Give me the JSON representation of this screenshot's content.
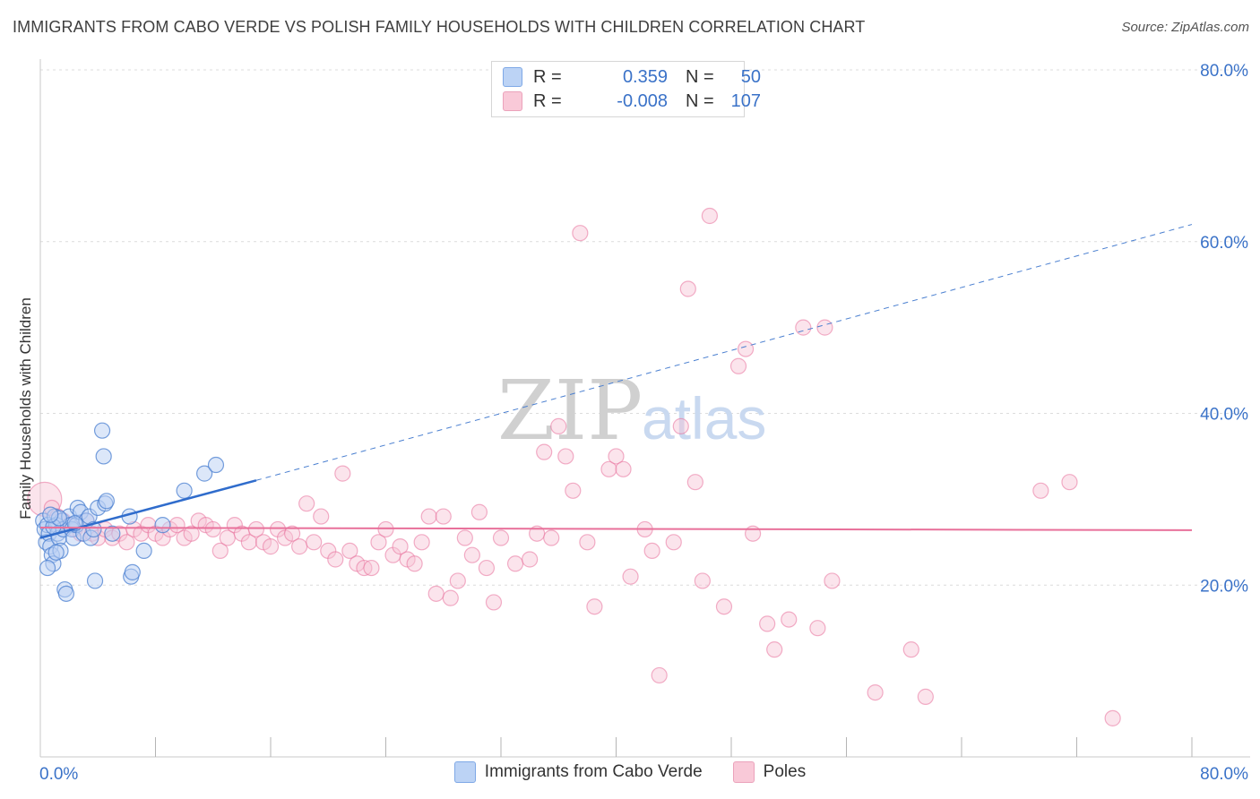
{
  "title": "IMMIGRANTS FROM CABO VERDE VS POLISH FAMILY HOUSEHOLDS WITH CHILDREN CORRELATION CHART",
  "source": "Source: ZipAtlas.com",
  "watermark": {
    "zip": "ZIP",
    "atlas": "atlas"
  },
  "stats": {
    "r_label": "R =",
    "n_label": "N =",
    "blue": {
      "r": "0.359",
      "n": "50",
      "color": "#4a7fd0"
    },
    "pink": {
      "r": "-0.008",
      "n": "107",
      "color": "#e8709a"
    }
  },
  "legend": {
    "blue_label": "Immigrants from Cabo Verde",
    "pink_label": "Poles"
  },
  "chart_data": {
    "type": "scatter",
    "title": "IMMIGRANTS FROM CABO VERDE VS POLISH FAMILY HOUSEHOLDS WITH CHILDREN CORRELATION CHART",
    "xlabel": "",
    "ylabel": "Family Households with Children",
    "xlim": [
      0,
      80
    ],
    "ylim": [
      0,
      80
    ],
    "x_tick_labels": [
      "0.0%",
      "80.0%"
    ],
    "y_tick_values": [
      20,
      40,
      60,
      80
    ],
    "y_tick_labels": [
      "20.0%",
      "40.0%",
      "60.0%",
      "80.0%"
    ],
    "grid": true,
    "series": [
      {
        "name": "Immigrants from Cabo Verde",
        "color": "#4a7fd0",
        "fill": "#b9d0f3",
        "points": [
          [
            0.2,
            27.5
          ],
          [
            0.3,
            26.5
          ],
          [
            0.4,
            25.0
          ],
          [
            0.5,
            27.0
          ],
          [
            0.6,
            26.0
          ],
          [
            0.7,
            24.5
          ],
          [
            0.8,
            23.5
          ],
          [
            0.9,
            22.5
          ],
          [
            1.0,
            28.0
          ],
          [
            1.1,
            27.0
          ],
          [
            1.2,
            26.0
          ],
          [
            1.3,
            25.5
          ],
          [
            1.4,
            24.0
          ],
          [
            1.5,
            27.5
          ],
          [
            1.6,
            26.5
          ],
          [
            1.7,
            19.5
          ],
          [
            1.8,
            19.0
          ],
          [
            2.0,
            28.0
          ],
          [
            2.1,
            27.0
          ],
          [
            2.2,
            26.5
          ],
          [
            2.3,
            25.5
          ],
          [
            2.5,
            27.0
          ],
          [
            2.6,
            29.0
          ],
          [
            2.8,
            28.5
          ],
          [
            3.0,
            26.0
          ],
          [
            3.2,
            27.5
          ],
          [
            3.4,
            28.0
          ],
          [
            3.5,
            25.5
          ],
          [
            3.7,
            26.5
          ],
          [
            3.8,
            20.5
          ],
          [
            4.0,
            29.0
          ],
          [
            4.3,
            38.0
          ],
          [
            4.4,
            35.0
          ],
          [
            4.5,
            29.5
          ],
          [
            4.6,
            29.8
          ],
          [
            5.0,
            26.0
          ],
          [
            6.2,
            28.0
          ],
          [
            6.3,
            21.0
          ],
          [
            6.4,
            21.5
          ],
          [
            7.2,
            24.0
          ],
          [
            8.5,
            27.0
          ],
          [
            10.0,
            31.0
          ],
          [
            11.4,
            33.0
          ],
          [
            12.2,
            34.0
          ],
          [
            0.5,
            22.0
          ],
          [
            0.9,
            26.8
          ],
          [
            1.3,
            27.8
          ],
          [
            2.4,
            27.2
          ],
          [
            0.7,
            28.2
          ],
          [
            1.1,
            23.8
          ]
        ],
        "trend": {
          "x1": 0,
          "y1": 25.5,
          "x2": 15,
          "y2": 32.2,
          "dash_x2": 80,
          "dash_y2": 62
        }
      },
      {
        "name": "Poles",
        "color": "#e8709a",
        "fill": "#f7c4d4",
        "points": [
          [
            0.3,
            30.0
          ],
          [
            0.8,
            29.0
          ],
          [
            1.2,
            28.0
          ],
          [
            1.6,
            27.5
          ],
          [
            2.0,
            27.0
          ],
          [
            2.4,
            26.5
          ],
          [
            2.8,
            26.0
          ],
          [
            3.2,
            27.5
          ],
          [
            3.6,
            26.0
          ],
          [
            4.0,
            25.5
          ],
          [
            4.5,
            26.5
          ],
          [
            5.0,
            25.5
          ],
          [
            5.5,
            26.0
          ],
          [
            6.0,
            25.0
          ],
          [
            6.5,
            26.5
          ],
          [
            7.0,
            26.0
          ],
          [
            7.5,
            27.0
          ],
          [
            8.0,
            26.0
          ],
          [
            8.5,
            25.5
          ],
          [
            9.0,
            26.5
          ],
          [
            9.5,
            27.0
          ],
          [
            10.0,
            25.5
          ],
          [
            10.5,
            26.0
          ],
          [
            11.0,
            27.5
          ],
          [
            11.5,
            27.0
          ],
          [
            12.0,
            26.5
          ],
          [
            12.5,
            24.0
          ],
          [
            13.0,
            25.5
          ],
          [
            13.5,
            27.0
          ],
          [
            14.0,
            26.0
          ],
          [
            14.5,
            25.0
          ],
          [
            15.0,
            26.5
          ],
          [
            15.5,
            25.0
          ],
          [
            16.0,
            24.5
          ],
          [
            16.5,
            26.5
          ],
          [
            17.0,
            25.5
          ],
          [
            17.5,
            26.0
          ],
          [
            18.0,
            24.5
          ],
          [
            18.5,
            29.5
          ],
          [
            19.0,
            25.0
          ],
          [
            19.5,
            28.0
          ],
          [
            20.0,
            24.0
          ],
          [
            20.5,
            23.0
          ],
          [
            21.0,
            33.0
          ],
          [
            21.5,
            24.0
          ],
          [
            22.0,
            22.5
          ],
          [
            22.5,
            22.0
          ],
          [
            23.0,
            22.0
          ],
          [
            23.5,
            25.0
          ],
          [
            24.0,
            26.5
          ],
          [
            24.5,
            23.5
          ],
          [
            25.0,
            24.5
          ],
          [
            25.5,
            23.0
          ],
          [
            26.0,
            22.5
          ],
          [
            26.5,
            25.0
          ],
          [
            27.0,
            28.0
          ],
          [
            27.5,
            19.0
          ],
          [
            28.0,
            28.0
          ],
          [
            28.5,
            18.5
          ],
          [
            29.0,
            20.5
          ],
          [
            29.5,
            25.5
          ],
          [
            30.0,
            23.5
          ],
          [
            30.5,
            28.5
          ],
          [
            31.0,
            22.0
          ],
          [
            31.5,
            18.0
          ],
          [
            32.0,
            25.5
          ],
          [
            33.0,
            22.5
          ],
          [
            34.0,
            23.0
          ],
          [
            34.5,
            26.0
          ],
          [
            35.0,
            35.5
          ],
          [
            35.5,
            25.5
          ],
          [
            36.0,
            38.5
          ],
          [
            36.5,
            35.0
          ],
          [
            37.0,
            31.0
          ],
          [
            37.5,
            61.0
          ],
          [
            38.0,
            25.0
          ],
          [
            38.5,
            17.5
          ],
          [
            39.5,
            33.5
          ],
          [
            40.0,
            35.0
          ],
          [
            40.5,
            33.5
          ],
          [
            41.0,
            21.0
          ],
          [
            42.0,
            26.5
          ],
          [
            42.5,
            24.0
          ],
          [
            43.0,
            9.5
          ],
          [
            44.0,
            25.0
          ],
          [
            44.5,
            38.5
          ],
          [
            45.0,
            54.5
          ],
          [
            45.5,
            32.0
          ],
          [
            46.0,
            20.5
          ],
          [
            46.5,
            63.0
          ],
          [
            47.5,
            17.5
          ],
          [
            48.5,
            45.5
          ],
          [
            49.0,
            47.5
          ],
          [
            49.5,
            26.0
          ],
          [
            50.5,
            15.5
          ],
          [
            51.0,
            12.5
          ],
          [
            52.0,
            16.0
          ],
          [
            53.0,
            50.0
          ],
          [
            54.0,
            15.0
          ],
          [
            54.5,
            50.0
          ],
          [
            55.0,
            20.5
          ],
          [
            58.0,
            7.5
          ],
          [
            60.5,
            12.5
          ],
          [
            61.5,
            7.0
          ],
          [
            69.5,
            31.0
          ],
          [
            71.5,
            32.0
          ],
          [
            74.5,
            4.5
          ]
        ],
        "trend": {
          "x1": 0,
          "y1": 26.7,
          "x2": 80,
          "y2": 26.4
        }
      }
    ]
  }
}
